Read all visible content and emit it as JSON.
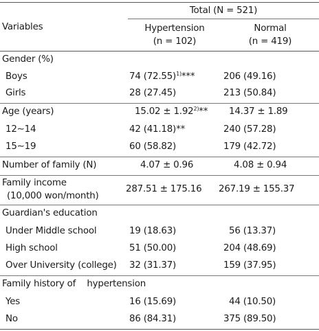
{
  "header": {
    "total": "Total (N = 521)",
    "variables": "Variables",
    "col_hyp": "Hypertension",
    "col_hyp_n": "(n = 102)",
    "col_norm": "Normal",
    "col_norm_n": "(n = 419)"
  },
  "rows": {
    "gender": "Gender (%)",
    "boys": "Boys",
    "boys_hyp": "74 (72.55)",
    "boys_hyp_sup": "1)",
    "boys_hyp_sig": "***",
    "boys_norm": "206 (49.16)",
    "girls": "Girls",
    "girls_hyp": "28 (27.45)",
    "girls_norm": "213 (50.84)",
    "age": "Age (years)",
    "age_hyp": "15.02 ± 1.92",
    "age_hyp_sup": "2)",
    "age_hyp_sig": "**",
    "age_norm": "14.37 ± 1.89",
    "age_1214": "12∼14",
    "age_1214_hyp": "42 (41.18)**",
    "age_1214_norm": "240 (57.28)",
    "age_1519": "15∼19",
    "age_1519_hyp": "60 (58.82)",
    "age_1519_norm": "179 (42.72)",
    "family_num": "Number of family (N)",
    "family_num_hyp": "4.07 ± 0.96",
    "family_num_norm": "4.08 ± 0.94",
    "income": "Family income",
    "income_unit": "(10,000 won/month)",
    "income_hyp": "287.51 ± 175.16",
    "income_norm": "267.19 ± 155.37",
    "guardian": "Guardian's education",
    "edu_middle": "Under Middle school",
    "edu_middle_hyp": "19 (18.63)",
    "edu_middle_norm": "56 (13.37)",
    "edu_high": "High school",
    "edu_high_hyp": "51 (50.00)",
    "edu_high_norm": "204 (48.69)",
    "edu_univ": "Over University (college)",
    "edu_univ_hyp": "32 (31.37)",
    "edu_univ_norm": "159 (37.95)",
    "fam_hist": "Family history of    hypertension",
    "yes": "Yes",
    "yes_hyp": "16 (15.69)",
    "yes_norm": "44 (10.50)",
    "no": "No",
    "no_hyp": "86 (84.31)",
    "no_norm": "375 (89.50)"
  }
}
